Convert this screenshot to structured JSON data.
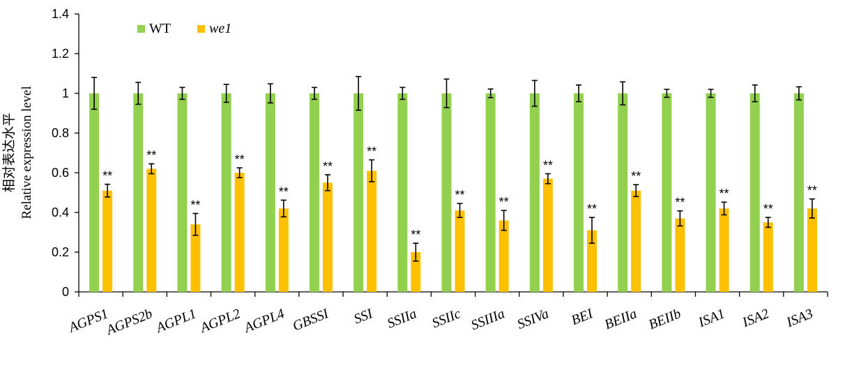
{
  "chart_data": {
    "type": "bar",
    "ylabel_cn": "相对表达水平",
    "ylabel": "Relative  expression level",
    "xlabel": "",
    "ylim": [
      0,
      1.4
    ],
    "yticks": [
      "0",
      "0.2",
      "0.4",
      "0.6",
      "0.8",
      "1",
      "1.2",
      "1.4"
    ],
    "grid": false,
    "legend_position": "top-left",
    "categories": [
      "AGPS1",
      "AGPS2b",
      "AGPL1",
      "AGPL2",
      "AGPL4",
      "GBSSI",
      "SSI",
      "SSIIa",
      "SSIIc",
      "SSIIIa",
      "SSIVa",
      "BEI",
      "BEIIa",
      "BEIIb",
      "ISA1",
      "ISA2",
      "ISA3"
    ],
    "series": [
      {
        "name": "WT",
        "color": "#92d050",
        "values": [
          1,
          1,
          1,
          1,
          1,
          1,
          1,
          1,
          1,
          1,
          1,
          1,
          1,
          1,
          1,
          1,
          1
        ],
        "errors": [
          0.08,
          0.055,
          0.03,
          0.045,
          0.048,
          0.03,
          0.085,
          0.03,
          0.072,
          0.022,
          0.065,
          0.042,
          0.058,
          0.02,
          0.02,
          0.042,
          0.033
        ]
      },
      {
        "name": "we1",
        "color": "#ffc000",
        "values": [
          0.51,
          0.62,
          0.34,
          0.6,
          0.42,
          0.55,
          0.61,
          0.2,
          0.41,
          0.36,
          0.57,
          0.31,
          0.51,
          0.37,
          0.42,
          0.35,
          0.42
        ],
        "errors": [
          0.032,
          0.025,
          0.055,
          0.025,
          0.042,
          0.04,
          0.055,
          0.045,
          0.035,
          0.05,
          0.025,
          0.065,
          0.03,
          0.038,
          0.032,
          0.025,
          0.048
        ],
        "annotation": "**"
      }
    ]
  }
}
